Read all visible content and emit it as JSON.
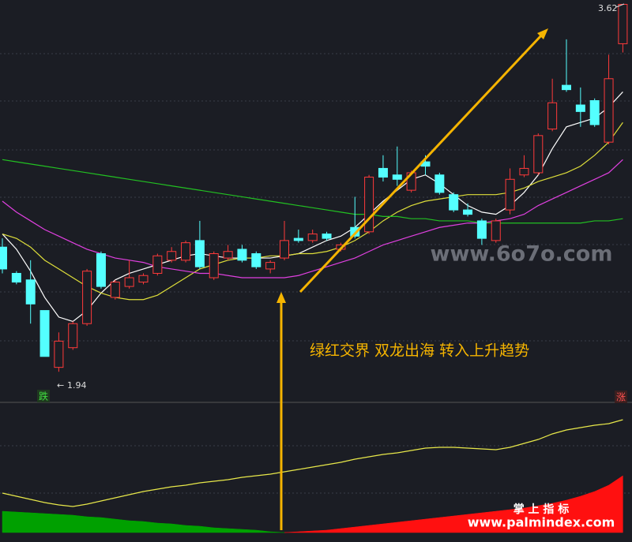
{
  "chart_data": [
    {
      "type": "candlestick",
      "open": [
        2.51,
        2.39,
        2.36,
        2.22,
        1.96,
        2.05,
        2.16,
        2.48,
        2.28,
        2.33,
        2.35,
        2.39,
        2.45,
        2.45,
        2.54,
        2.37,
        2.46,
        2.5,
        2.48,
        2.41,
        2.46,
        2.55,
        2.54,
        2.57,
        2.5,
        2.6,
        2.58,
        2.87,
        2.84,
        2.77,
        2.9,
        2.84,
        2.75,
        2.68,
        2.63,
        2.54,
        2.68,
        2.84,
        2.85,
        3.05,
        3.25,
        3.16,
        3.18,
        2.99,
        3.44
      ],
      "high": [
        2.55,
        2.4,
        2.45,
        2.22,
        2.12,
        2.17,
        2.41,
        2.49,
        2.36,
        2.45,
        2.39,
        2.48,
        2.51,
        2.54,
        2.63,
        2.49,
        2.52,
        2.52,
        2.49,
        2.45,
        2.63,
        2.59,
        2.59,
        2.58,
        2.53,
        2.74,
        2.84,
        2.93,
        2.97,
        2.86,
        2.93,
        2.85,
        2.76,
        2.71,
        2.64,
        2.64,
        2.87,
        2.93,
        3.03,
        3.28,
        3.46,
        3.24,
        3.19,
        3.39,
        3.62
      ],
      "low": [
        2.39,
        2.34,
        2.16,
        2.01,
        1.94,
        2.04,
        2.15,
        2.32,
        2.27,
        2.32,
        2.34,
        2.38,
        2.44,
        2.44,
        2.41,
        2.36,
        2.45,
        2.44,
        2.41,
        2.39,
        2.45,
        2.53,
        2.53,
        2.54,
        2.49,
        2.55,
        2.57,
        2.81,
        2.79,
        2.76,
        2.84,
        2.75,
        2.67,
        2.65,
        2.52,
        2.53,
        2.66,
        2.83,
        2.84,
        3.04,
        3.22,
        3.06,
        3.06,
        2.98,
        3.4
      ],
      "close": [
        2.41,
        2.35,
        2.25,
        2.01,
        2.08,
        2.16,
        2.4,
        2.33,
        2.35,
        2.37,
        2.38,
        2.47,
        2.49,
        2.53,
        2.42,
        2.48,
        2.49,
        2.45,
        2.42,
        2.44,
        2.54,
        2.54,
        2.57,
        2.55,
        2.52,
        2.56,
        2.83,
        2.83,
        2.82,
        2.85,
        2.88,
        2.76,
        2.68,
        2.66,
        2.55,
        2.63,
        2.82,
        2.87,
        3.02,
        3.17,
        3.23,
        3.13,
        3.07,
        3.28,
        3.62
      ],
      "up_color": "#ff3a3a",
      "down_color": "#54ffff",
      "series": [
        {
          "color": "#ffffff",
          "values": [
            2.57,
            2.5,
            2.4,
            2.28,
            2.19,
            2.17,
            2.22,
            2.3,
            2.36,
            2.39,
            2.41,
            2.43,
            2.45,
            2.47,
            2.48,
            2.47,
            2.46,
            2.46,
            2.46,
            2.46,
            2.47,
            2.48,
            2.51,
            2.54,
            2.56,
            2.6,
            2.66,
            2.72,
            2.77,
            2.82,
            2.84,
            2.8,
            2.75,
            2.7,
            2.67,
            2.66,
            2.7,
            2.76,
            2.84,
            2.96,
            3.06,
            3.08,
            3.1,
            3.15,
            3.22
          ]
        },
        {
          "color": "#dede3a",
          "values": [
            2.57,
            2.55,
            2.51,
            2.45,
            2.41,
            2.37,
            2.33,
            2.3,
            2.28,
            2.27,
            2.27,
            2.29,
            2.33,
            2.37,
            2.41,
            2.43,
            2.45,
            2.46,
            2.46,
            2.47,
            2.47,
            2.48,
            2.48,
            2.49,
            2.51,
            2.54,
            2.58,
            2.63,
            2.67,
            2.7,
            2.72,
            2.73,
            2.74,
            2.75,
            2.75,
            2.75,
            2.76,
            2.78,
            2.81,
            2.83,
            2.85,
            2.88,
            2.93,
            2.99,
            3.08
          ]
        },
        {
          "color": "#e040e0",
          "values": [
            2.72,
            2.67,
            2.63,
            2.59,
            2.56,
            2.53,
            2.5,
            2.48,
            2.46,
            2.45,
            2.44,
            2.42,
            2.41,
            2.4,
            2.39,
            2.39,
            2.38,
            2.37,
            2.37,
            2.37,
            2.37,
            2.38,
            2.4,
            2.42,
            2.44,
            2.46,
            2.49,
            2.52,
            2.54,
            2.56,
            2.58,
            2.6,
            2.61,
            2.62,
            2.62,
            2.63,
            2.64,
            2.66,
            2.7,
            2.73,
            2.76,
            2.79,
            2.82,
            2.85,
            2.91
          ]
        },
        {
          "color": "#22c022",
          "values": [
            2.91,
            2.9,
            2.89,
            2.88,
            2.87,
            2.86,
            2.85,
            2.84,
            2.83,
            2.82,
            2.81,
            2.8,
            2.79,
            2.78,
            2.77,
            2.76,
            2.75,
            2.74,
            2.73,
            2.72,
            2.71,
            2.7,
            2.69,
            2.68,
            2.67,
            2.66,
            2.66,
            2.65,
            2.65,
            2.64,
            2.64,
            2.63,
            2.63,
            2.63,
            2.62,
            2.62,
            2.62,
            2.62,
            2.62,
            2.62,
            2.62,
            2.62,
            2.63,
            2.63,
            2.64
          ]
        }
      ],
      "ylim": [
        1.8,
        3.64
      ],
      "max_label": "3.62",
      "min_label": "1.94",
      "down_label": "跌",
      "up_label": "涨",
      "annotation": "绿红交界 双龙出海 转入上升趋势"
    },
    {
      "type": "area",
      "ylim": [
        -12,
        160
      ],
      "series": [
        {
          "color": "#00a000",
          "fill": true,
          "values": [
            27,
            26,
            25,
            24,
            23,
            22,
            20,
            19,
            17,
            15,
            14,
            12,
            11,
            9,
            8,
            6,
            5,
            4,
            3,
            1,
            0,
            null,
            null,
            null,
            null,
            null,
            null,
            null,
            null,
            null,
            null,
            null,
            null,
            null,
            null,
            null,
            null,
            null,
            null,
            null,
            null,
            null,
            null,
            null,
            null
          ]
        },
        {
          "color": "#ff1010",
          "fill": true,
          "values": [
            null,
            null,
            null,
            null,
            null,
            null,
            null,
            null,
            null,
            null,
            null,
            null,
            null,
            null,
            null,
            null,
            null,
            null,
            null,
            null,
            0,
            1,
            2,
            3,
            5,
            7,
            9,
            11,
            13,
            15,
            17,
            19,
            21,
            23,
            25,
            27,
            29,
            31,
            34,
            37,
            41,
            46,
            52,
            60,
            72
          ]
        },
        {
          "color": "#e8e84a",
          "fill": false,
          "values": [
            50,
            46,
            42,
            38,
            35,
            33,
            36,
            40,
            44,
            48,
            52,
            55,
            58,
            60,
            63,
            65,
            67,
            70,
            72,
            74,
            77,
            80,
            83,
            86,
            89,
            93,
            96,
            99,
            101,
            104,
            107,
            108,
            108,
            107,
            106,
            105,
            108,
            113,
            118,
            125,
            130,
            133,
            136,
            138,
            143
          ]
        }
      ]
    }
  ],
  "watermarks": [
    "www.6o7o.com",
    "掌 上 指 标",
    "www.palmindex.com"
  ]
}
